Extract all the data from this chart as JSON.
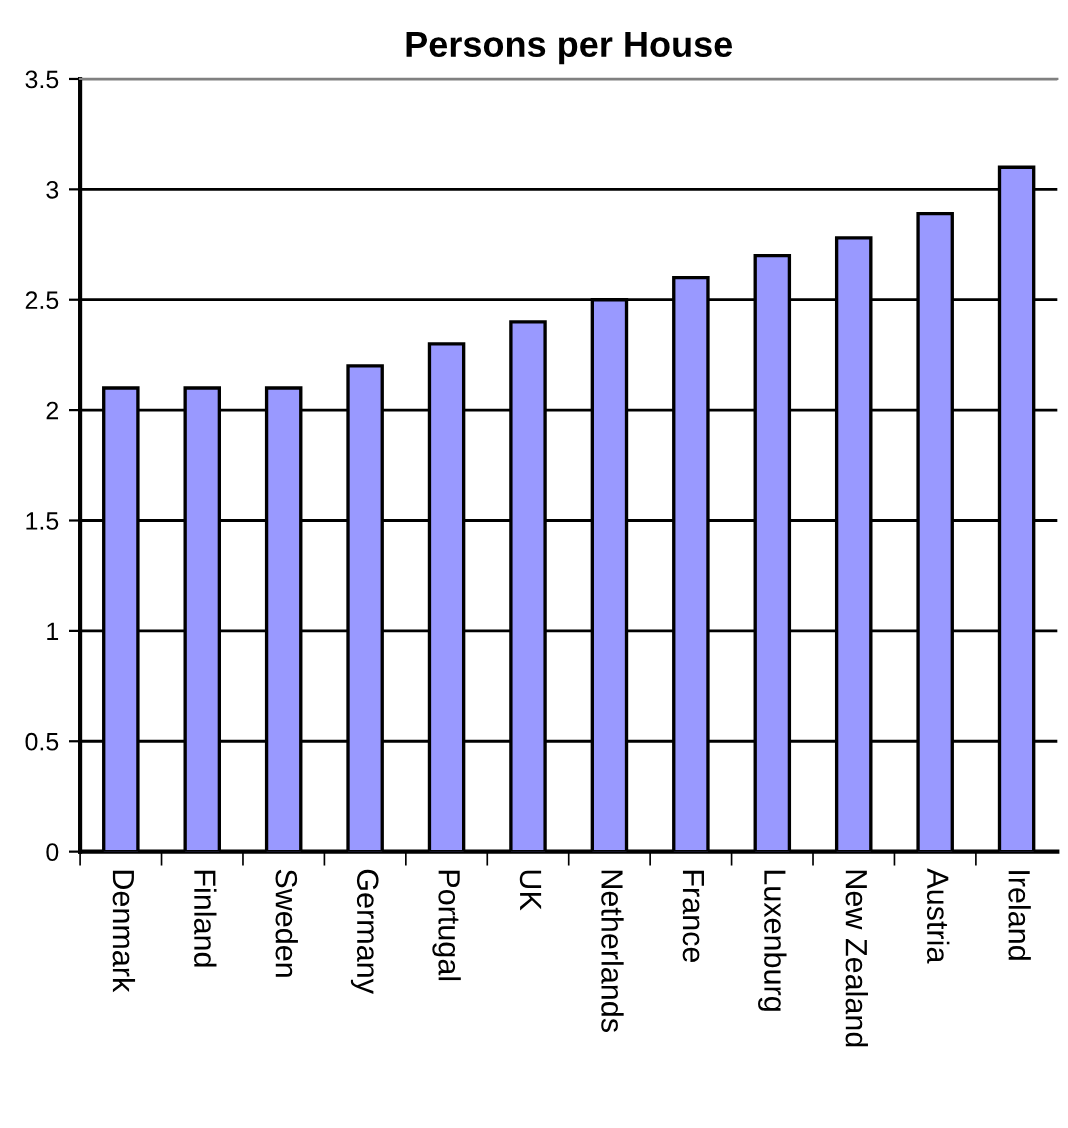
{
  "chart_data": {
    "type": "bar",
    "title": "Persons per House",
    "categories": [
      "Denmark",
      "Finland",
      "Sweden",
      "Germany",
      "Portugal",
      "UK",
      "Netherlands",
      "France",
      "Luxenburg",
      "New Zealand",
      "Austria",
      "Ireland"
    ],
    "values": [
      2.1,
      2.1,
      2.1,
      2.2,
      2.3,
      2.4,
      2.5,
      2.6,
      2.7,
      2.78,
      2.89,
      3.1
    ],
    "color": "#9999ff",
    "ylim": [
      0,
      3.5
    ],
    "yticks": [
      0,
      0.5,
      1,
      1.5,
      2,
      2.5,
      3,
      3.5
    ],
    "grid": "y",
    "legend": false
  }
}
